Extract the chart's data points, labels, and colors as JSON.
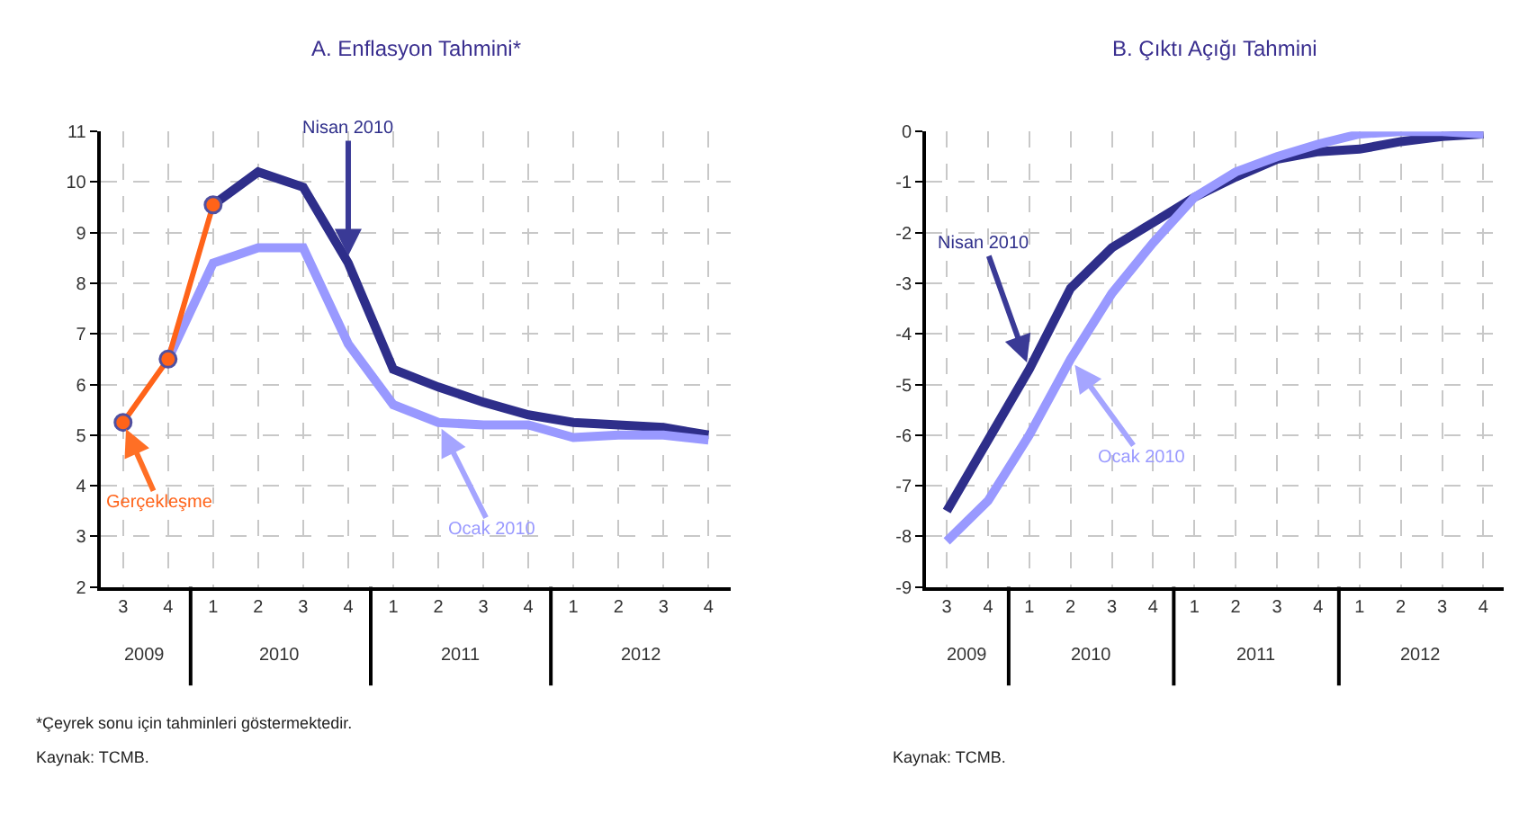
{
  "chart_data": [
    {
      "type": "line",
      "title": "A. Enflasyon Tahmini*",
      "categories": [
        "3",
        "4",
        "1",
        "2",
        "3",
        "4",
        "1",
        "2",
        "3",
        "4",
        "1",
        "2",
        "3",
        "4"
      ],
      "series": [
        {
          "name": "Nisan 2010",
          "color": "#2e2e8a",
          "marker": "none",
          "values": [
            null,
            null,
            9.55,
            10.2,
            9.9,
            8.4,
            6.3,
            5.95,
            5.65,
            5.4,
            5.25,
            5.2,
            5.15,
            5.0
          ]
        },
        {
          "name": "Ocak 2010",
          "color": "#9999ff",
          "marker": "none",
          "values": [
            null,
            6.5,
            8.4,
            8.7,
            8.7,
            6.8,
            5.6,
            5.25,
            5.2,
            5.2,
            4.95,
            5.0,
            5.0,
            4.9
          ]
        },
        {
          "name": "Gerçekleşme",
          "color": "#ff6319",
          "marker": "circle",
          "values": [
            5.25,
            6.5,
            9.55,
            null,
            null,
            null,
            null,
            null,
            null,
            null,
            null,
            null,
            null,
            null
          ]
        }
      ],
      "ylim": [
        2,
        11
      ],
      "yticks": [
        2,
        3,
        4,
        5,
        6,
        7,
        8,
        9,
        10,
        11
      ],
      "grid": true,
      "line_style": "solid",
      "annotations": [
        "2009",
        "2010",
        "2011",
        "2012",
        "*Çeyrek sonu için tahminleri göstermektedir.",
        "Kaynak: TCMB."
      ]
    },
    {
      "type": "line",
      "title": "B. Çıktı Açığı Tahmini",
      "categories": [
        "3",
        "4",
        "1",
        "2",
        "3",
        "4",
        "1",
        "2",
        "3",
        "4",
        "1",
        "2",
        "3",
        "4"
      ],
      "series": [
        {
          "name": "Nisan 2010",
          "color": "#2e2e8a",
          "marker": "none",
          "values": [
            -7.5,
            -6.1,
            -4.7,
            -3.1,
            -2.3,
            -1.8,
            -1.3,
            -0.9,
            -0.55,
            -0.4,
            -0.35,
            -0.2,
            -0.1,
            -0.05
          ]
        },
        {
          "name": "Ocak 2010",
          "color": "#9999ff",
          "marker": "none",
          "values": [
            -8.1,
            -7.3,
            -6.0,
            -4.5,
            -3.2,
            -2.2,
            -1.3,
            -0.8,
            -0.5,
            -0.25,
            -0.05,
            0,
            0,
            -0.05
          ]
        }
      ],
      "ylim": [
        -9,
        0
      ],
      "yticks": [
        -9,
        -8,
        -7,
        -6,
        -5,
        -4,
        -3,
        -2,
        -1,
        0
      ],
      "grid": true,
      "line_style": "solid",
      "annotations": [
        "2009",
        "2010",
        "2011",
        "2012",
        "Kaynak: TCMB."
      ]
    }
  ]
}
